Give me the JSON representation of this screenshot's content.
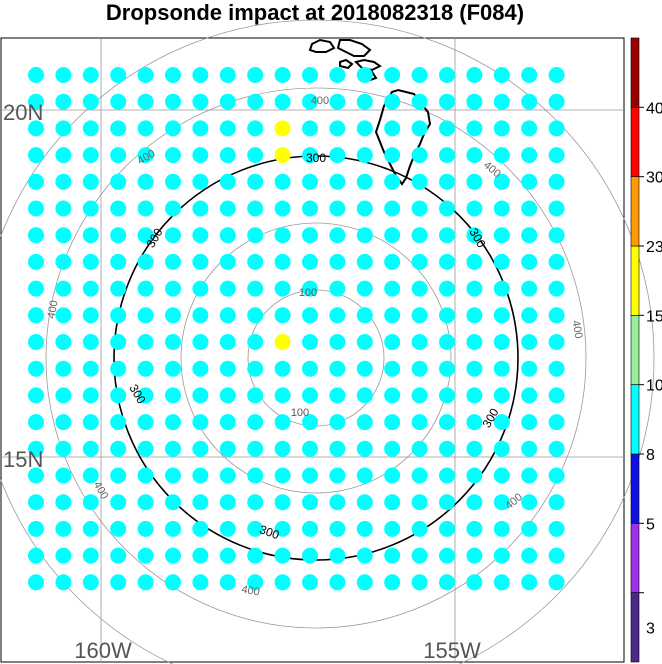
{
  "chart_data": {
    "type": "scatter",
    "title": "Dropsonde impact at 2018082318 (F084)",
    "xlabel": "",
    "ylabel": "",
    "grid": true,
    "x_ticks": [
      "160W",
      "155W"
    ],
    "y_ticks": [
      "20N",
      "15N"
    ],
    "range_ring_labels": [
      "100",
      "300",
      "400"
    ],
    "colorbar": {
      "levels": [
        "3",
        "5",
        "8",
        "10",
        "15",
        "23",
        "30",
        "40"
      ],
      "colors": [
        "#4b2a8a",
        "#a030e6",
        "#1010e0",
        "#00ffff",
        "#99ee99",
        "#ffff00",
        "#ff9900",
        "#ff0000",
        "#990000"
      ]
    },
    "cols": 20,
    "rows": 20,
    "grid_values": [
      "33333333333333333333",
      "33333333333333333333",
      "33333333353333333333",
      "33333333353333333333",
      "33333333333333333333",
      "33333333333333333333",
      "33333333333333333333",
      "33333333333333333333",
      "33333333333333333333",
      "33333333333333333333",
      "33333333353333333333",
      "33333333333333333333",
      "33333333333333333333",
      "33333333333333333333",
      "33333333333333333333",
      "33333333333333333333",
      "33333333333333333333",
      "33333333333333333333",
      "33333333333333333333",
      "33333333333333333333"
    ]
  }
}
